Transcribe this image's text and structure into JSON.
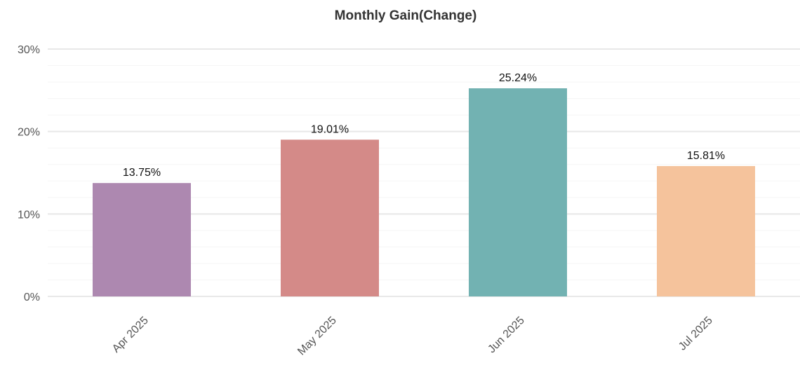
{
  "chart_data": {
    "type": "bar",
    "title": "Monthly Gain(Change)",
    "xlabel": "",
    "ylabel": "",
    "categories": [
      "Apr 2025",
      "May 2025",
      "Jun 2025",
      "Jul 2025"
    ],
    "values": [
      13.75,
      19.01,
      25.24,
      15.81
    ],
    "data_labels": [
      "13.75%",
      "19.01%",
      "25.24%",
      "15.81%"
    ],
    "colors": [
      "#ad88b0",
      "#d48a88",
      "#72b2b2",
      "#f5c39c"
    ],
    "ylim": [
      0,
      30
    ],
    "yticks": [
      0,
      10,
      20,
      30
    ],
    "ytick_labels": [
      "0%",
      "10%",
      "20%",
      "30%"
    ],
    "grid": true,
    "minor_grid_step": 2,
    "legend": "none"
  }
}
